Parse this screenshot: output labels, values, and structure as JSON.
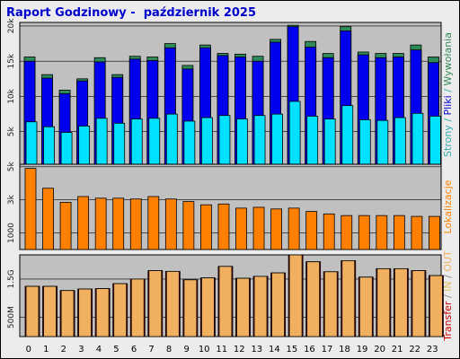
{
  "report": {
    "title": "Raport Godzinowy -  październik 2025"
  },
  "chart_data": [
    {
      "type": "bar",
      "name": "visits",
      "categories": [
        "0",
        "1",
        "2",
        "3",
        "4",
        "5",
        "6",
        "7",
        "8",
        "9",
        "10",
        "11",
        "12",
        "13",
        "14",
        "15",
        "16",
        "17",
        "18",
        "19",
        "20",
        "21",
        "22",
        "23"
      ],
      "side_label": [
        {
          "text": "Strony",
          "color": "#33aaaa"
        },
        {
          "text": " / ",
          "color": "#33aaaa"
        },
        {
          "text": "Pliki",
          "color": "#0000cc"
        },
        {
          "text": " / ",
          "color": "#33aaaa"
        },
        {
          "text": "Wywołania",
          "color": "#338855"
        }
      ],
      "yticks": [
        {
          "value": 20000,
          "label": "20k"
        },
        {
          "value": 15000,
          "label": "15k"
        },
        {
          "value": 10000,
          "label": "10k"
        },
        {
          "value": 5000,
          "label": "5k"
        }
      ],
      "ylim": [
        0,
        20500
      ],
      "grid": true,
      "series": [
        {
          "name": "Wywołania",
          "color": "#2e8b57",
          "values": [
            15600,
            13100,
            10900,
            12500,
            15500,
            13100,
            15700,
            15600,
            17500,
            14400,
            17300,
            16100,
            16000,
            15700,
            18100,
            20100,
            17800,
            16100,
            19900,
            16300,
            16100,
            16100,
            17300,
            15600
          ]
        },
        {
          "name": "Pliki",
          "color": "#0000ee",
          "values": [
            15000,
            12600,
            10400,
            12200,
            14900,
            12700,
            15300,
            15100,
            16900,
            13900,
            16900,
            15800,
            15600,
            15000,
            17700,
            19900,
            17000,
            15500,
            19300,
            15900,
            15500,
            15600,
            16600,
            14800
          ]
        },
        {
          "name": "Strony",
          "color": "#00e0ff",
          "values": [
            6400,
            5700,
            4900,
            5800,
            6900,
            6200,
            6800,
            6900,
            7500,
            6500,
            7000,
            7300,
            6800,
            7300,
            7500,
            9300,
            7200,
            6800,
            8700,
            6700,
            6600,
            7000,
            7600,
            7200
          ]
        }
      ]
    },
    {
      "type": "bar",
      "name": "locations",
      "categories": [
        "0",
        "1",
        "2",
        "3",
        "4",
        "5",
        "6",
        "7",
        "8",
        "9",
        "10",
        "11",
        "12",
        "13",
        "14",
        "15",
        "16",
        "17",
        "18",
        "19",
        "20",
        "21",
        "22",
        "23"
      ],
      "side_label": [
        {
          "text": "Lokalizacje",
          "color": "#ff8000"
        }
      ],
      "yticks": [
        {
          "value": 5000,
          "label": "5k"
        },
        {
          "value": 3000,
          "label": "3k"
        },
        {
          "value": 1000,
          "label": "1000"
        }
      ],
      "ylim": [
        0,
        5150
      ],
      "grid": true,
      "series": [
        {
          "name": "Lokalizacje",
          "color": "#ff8000",
          "values": [
            4900,
            3700,
            2850,
            3200,
            3100,
            3100,
            3050,
            3200,
            3050,
            2900,
            2700,
            2750,
            2500,
            2550,
            2450,
            2500,
            2300,
            2150,
            2050,
            2050,
            2050,
            2050,
            2000,
            2000
          ]
        }
      ]
    },
    {
      "type": "bar",
      "name": "transfer",
      "categories": [
        "0",
        "1",
        "2",
        "3",
        "4",
        "5",
        "6",
        "7",
        "8",
        "9",
        "10",
        "11",
        "12",
        "13",
        "14",
        "15",
        "16",
        "17",
        "18",
        "19",
        "20",
        "21",
        "22",
        "23"
      ],
      "side_label": [
        {
          "text": "Transfer",
          "color": "#cc0000"
        },
        {
          "text": " / ",
          "color": "#888888"
        },
        {
          "text": "IN",
          "color": "#e0c060"
        },
        {
          "text": " / ",
          "color": "#888888"
        },
        {
          "text": "OUT",
          "color": "#f0b060"
        }
      ],
      "yticks": [
        {
          "value": 1500,
          "label": "1.5G"
        },
        {
          "value": 500,
          "label": "500M"
        }
      ],
      "ylim": [
        0,
        2130
      ],
      "grid": true,
      "series": [
        {
          "name": "Transfer",
          "color": "#cc0000",
          "values": [
            1310,
            1310,
            1200,
            1240,
            1250,
            1380,
            1500,
            1720,
            1700,
            1480,
            1530,
            1830,
            1520,
            1570,
            1660,
            2130,
            1950,
            1690,
            1980,
            1550,
            1770,
            1770,
            1720,
            1590
          ]
        },
        {
          "name": "OUT",
          "color": "#f0b060",
          "values": [
            1310,
            1310,
            1200,
            1240,
            1250,
            1380,
            1500,
            1720,
            1700,
            1480,
            1530,
            1830,
            1520,
            1570,
            1660,
            2130,
            1950,
            1690,
            1980,
            1550,
            1770,
            1770,
            1720,
            1590
          ]
        }
      ]
    }
  ]
}
